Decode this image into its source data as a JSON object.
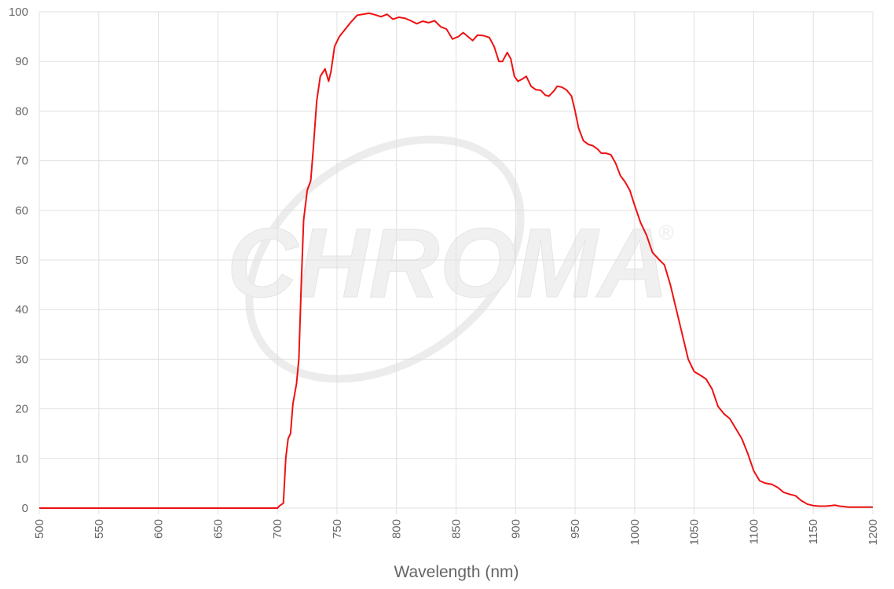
{
  "chart_data": {
    "type": "line",
    "x_label": "Wavelength (nm)",
    "watermark": "CHROMA",
    "watermark_mark": "®",
    "xlim": [
      500,
      1200
    ],
    "xticks": [
      500,
      550,
      600,
      650,
      700,
      750,
      800,
      850,
      900,
      950,
      1000,
      1050,
      1100,
      1150,
      1200
    ],
    "ylim": [
      0,
      100
    ],
    "yticks": [
      0,
      10,
      20,
      30,
      40,
      50,
      60,
      70,
      80,
      90,
      100
    ],
    "grid": true,
    "x": [
      500,
      700,
      702,
      705,
      707,
      709,
      711,
      713,
      716,
      718,
      720,
      722,
      725,
      728,
      730,
      733,
      736,
      740,
      743,
      745,
      748,
      752,
      757,
      762,
      767,
      772,
      777,
      782,
      787,
      792,
      797,
      802,
      807,
      812,
      817,
      822,
      827,
      832,
      837,
      842,
      847,
      852,
      856,
      860,
      864,
      868,
      873,
      878,
      882,
      886,
      889,
      893,
      896,
      899,
      902,
      906,
      909,
      913,
      917,
      921,
      925,
      928,
      932,
      935,
      939,
      943,
      947,
      950,
      953,
      957,
      961,
      965,
      969,
      972,
      976,
      980,
      984,
      988,
      992,
      996,
      1000,
      1005,
      1010,
      1015,
      1020,
      1025,
      1030,
      1035,
      1040,
      1045,
      1050,
      1055,
      1060,
      1065,
      1070,
      1075,
      1080,
      1085,
      1090,
      1095,
      1100,
      1105,
      1110,
      1115,
      1120,
      1125,
      1130,
      1135,
      1140,
      1145,
      1150,
      1155,
      1160,
      1165,
      1168,
      1172,
      1180,
      1200
    ],
    "series": [
      {
        "color": "#ee1111",
        "values": [
          0,
          0,
          0.5,
          1,
          10,
          14,
          15,
          21,
          25,
          30,
          45,
          58,
          64,
          66,
          72,
          82,
          87,
          88.5,
          86,
          88,
          93,
          95,
          96.5,
          98,
          99.3,
          99.5,
          99.7,
          99.4,
          99,
          99.5,
          98.5,
          98.9,
          98.7,
          98.2,
          97.6,
          98.1,
          97.8,
          98.2,
          97,
          96.5,
          94.5,
          95,
          95.8,
          95,
          94.2,
          95.3,
          95.2,
          94.8,
          93,
          90,
          90,
          91.8,
          90.5,
          87,
          86,
          86.5,
          87,
          85,
          84.3,
          84.2,
          83.2,
          83,
          84,
          85,
          84.8,
          84.2,
          83,
          80,
          76.5,
          74,
          73.3,
          73,
          72.3,
          71.5,
          71.5,
          71.2,
          69.5,
          67,
          65.7,
          64,
          61,
          57.5,
          55,
          51.5,
          50.2,
          49,
          45,
          40,
          35,
          30,
          27.5,
          26.8,
          26,
          24,
          20.5,
          19,
          18,
          16,
          14,
          11,
          7.5,
          5.5,
          5,
          4.8,
          4.2,
          3.2,
          2.8,
          2.5,
          1.5,
          0.8,
          0.5,
          0.4,
          0.4,
          0.5,
          0.6,
          0.4,
          0.2,
          0.2
        ]
      }
    ]
  }
}
